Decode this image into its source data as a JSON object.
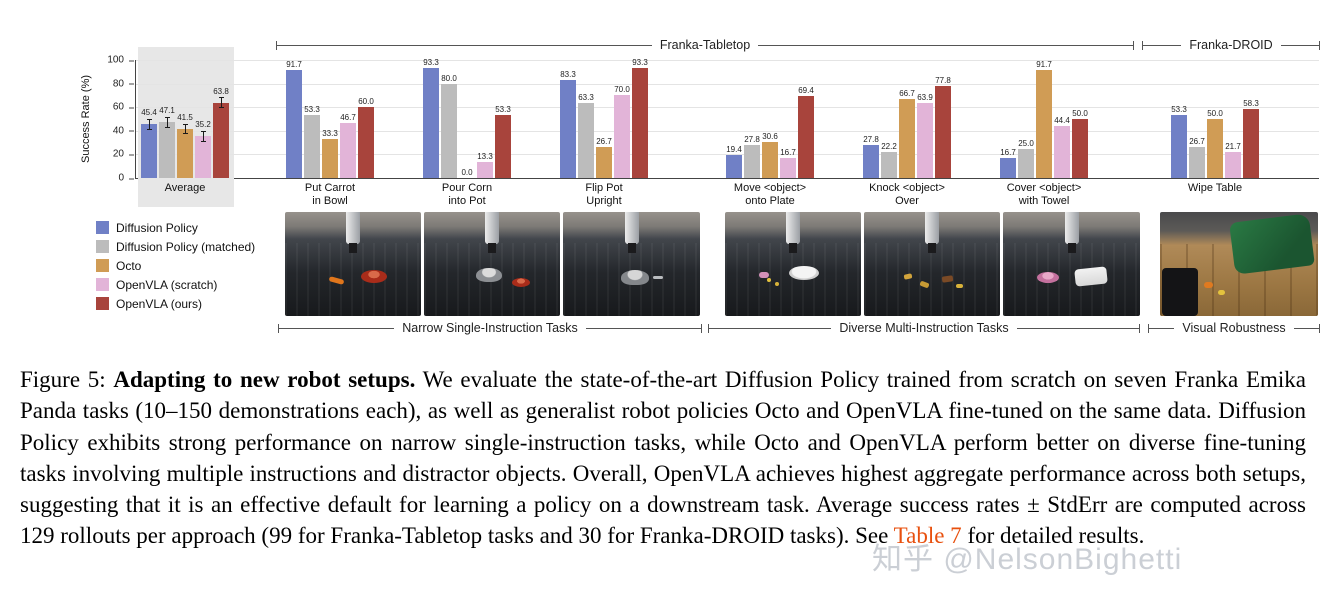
{
  "figure": {
    "top_brackets": [
      {
        "label": "Franka-Tabletop"
      },
      {
        "label": "Franka-DROID"
      }
    ],
    "bottom_brackets": [
      {
        "label": "Narrow Single-Instruction Tasks"
      },
      {
        "label": "Diverse Multi-Instruction Tasks"
      },
      {
        "label": "Visual Robustness"
      }
    ],
    "chart_data": {
      "type": "bar",
      "title": "",
      "xlabel": "",
      "ylabel": "Success Rate (%)",
      "ylim": [
        0,
        100
      ],
      "yticks": [
        0,
        20,
        40,
        60,
        80,
        100
      ],
      "grid": true,
      "legend_position": "lower-left",
      "average_error_bar_approx": 4.5,
      "categories": [
        "Average",
        "Put Carrot\nin Bowl",
        "Pour Corn\ninto Pot",
        "Flip Pot\nUpright",
        "Move <object>\nonto Plate",
        "Knock <object>\nOver",
        "Cover <object>\nwith Towel",
        "Wipe Table"
      ],
      "series": [
        {
          "name": "Diffusion Policy",
          "color": "#7080c6",
          "values": [
            45.4,
            91.7,
            93.3,
            83.3,
            19.4,
            27.8,
            16.7,
            53.3
          ]
        },
        {
          "name": "Diffusion Policy (matched)",
          "color": "#bcbcbc",
          "values": [
            47.1,
            53.3,
            80.0,
            63.3,
            27.8,
            22.2,
            25.0,
            26.7
          ]
        },
        {
          "name": "Octo",
          "color": "#d09c55",
          "values": [
            41.5,
            33.3,
            0.0,
            26.7,
            30.6,
            66.7,
            91.7,
            50.0
          ]
        },
        {
          "name": "OpenVLA (scratch)",
          "color": "#e2b4d8",
          "values": [
            35.2,
            46.7,
            13.3,
            70.0,
            16.7,
            63.9,
            44.4,
            21.7
          ]
        },
        {
          "name": "OpenVLA (ours)",
          "color": "#a8443c",
          "values": [
            63.8,
            60.0,
            53.3,
            93.3,
            69.4,
            77.8,
            50.0,
            58.3
          ]
        }
      ]
    },
    "photos": [
      {
        "name": "put-carrot-in-bowl-photo"
      },
      {
        "name": "pour-corn-into-pot-photo"
      },
      {
        "name": "flip-pot-upright-photo"
      },
      {
        "name": "move-object-onto-plate-photo"
      },
      {
        "name": "knock-object-over-photo"
      },
      {
        "name": "cover-object-with-towel-photo"
      },
      {
        "name": "wipe-table-droid-photo"
      }
    ]
  },
  "caption": {
    "figure_label": "Figure 5: ",
    "bold_lead": "Adapting to new robot setups.",
    "body": " We evaluate the state-of-the-art Diffusion Policy trained from scratch on seven Franka Emika Panda tasks (10–150 demonstrations each), as well as generalist robot policies Octo and OpenVLA fine-tuned on the same data. Diffusion Policy exhibits strong performance on narrow single-instruction tasks, while Octo and OpenVLA perform better on diverse fine-tuning tasks involving multiple instructions and distractor objects. Overall, OpenVLA achieves highest aggregate performance across both setups, suggesting that it is an effective default for learning a policy on a downstream task. Average success rates ± StdErr are computed across 129 rollouts per approach (99 for Franka-Tabletop tasks and 30 for Franka-DROID tasks). See ",
    "link_text": "Table 7",
    "tail": " for detailed results."
  },
  "watermark": {
    "text": "知乎 @NelsonBighetti"
  },
  "colors": {
    "link": "#e8500e",
    "average_panel": "#e7e7e7"
  }
}
